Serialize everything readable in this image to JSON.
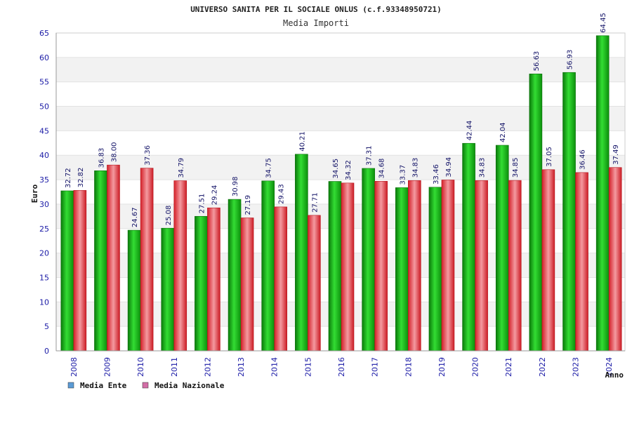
{
  "chart_data": {
    "type": "bar",
    "title": "UNIVERSO SANITA PER IL SOCIALE ONLUS (c.f.93348950721)",
    "subtitle": "Media Importi",
    "xlabel": "Anno",
    "ylabel": "Euro",
    "ylim": [
      0,
      65
    ],
    "yticks": [
      0,
      5,
      10,
      15,
      20,
      25,
      30,
      35,
      40,
      45,
      50,
      55,
      60,
      65
    ],
    "categories": [
      "2008",
      "2009",
      "2010",
      "2011",
      "2012",
      "2013",
      "2014",
      "2015",
      "2016",
      "2017",
      "2018",
      "2019",
      "2020",
      "2021",
      "2022",
      "2023",
      "2024"
    ],
    "series": [
      {
        "name": "Media Ente",
        "color": "#1db31d",
        "values": [
          32.72,
          36.83,
          24.67,
          25.08,
          27.51,
          30.98,
          34.75,
          40.21,
          34.65,
          37.31,
          33.37,
          33.46,
          42.44,
          42.04,
          56.63,
          56.93,
          64.45
        ]
      },
      {
        "name": "Media Nazionale",
        "color": "#e5393f",
        "values": [
          32.82,
          38.0,
          37.36,
          34.79,
          29.24,
          27.19,
          29.43,
          27.71,
          34.32,
          34.68,
          34.83,
          34.94,
          34.83,
          34.85,
          37.05,
          36.46,
          37.49
        ]
      }
    ],
    "legend": {
      "position": "bottom-left",
      "items": [
        {
          "label": "Media Ente",
          "color": "#5b9bd5"
        },
        {
          "label": "Media Nazionale",
          "color": "#d26ea6"
        }
      ]
    },
    "grid": "horizontal bands"
  }
}
